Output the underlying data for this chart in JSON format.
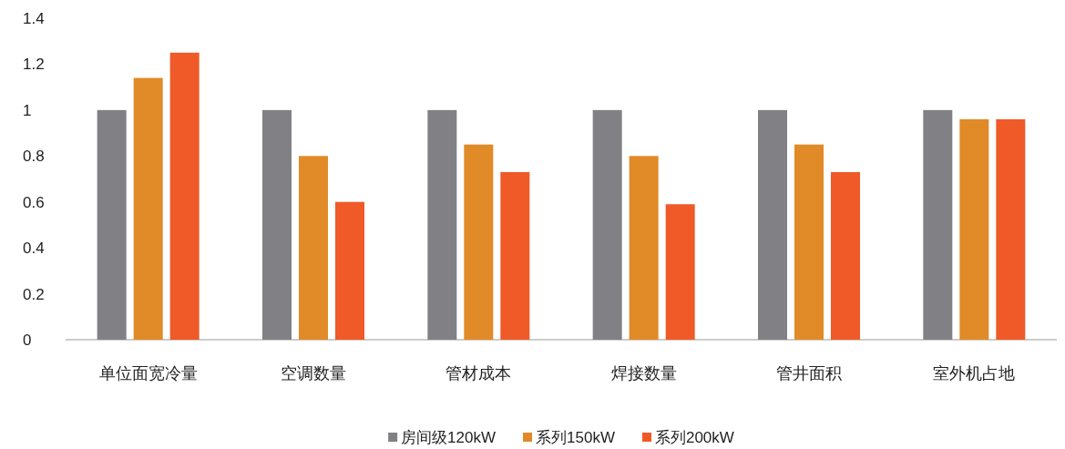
{
  "chart_data": {
    "type": "bar",
    "categories": [
      "单位面宽冷量",
      "空调数量",
      "管材成本",
      "焊接数量",
      "管井面积",
      "室外机占地"
    ],
    "series": [
      {
        "name": "房间级120kW",
        "color": "#818185",
        "values": [
          1,
          1,
          1,
          1,
          1,
          1
        ]
      },
      {
        "name": "系列150kW",
        "color": "#e08a28",
        "values": [
          1.14,
          0.8,
          0.85,
          0.8,
          0.85,
          0.96
        ]
      },
      {
        "name": "系列200kW",
        "color": "#ef5a28",
        "values": [
          1.25,
          0.6,
          0.73,
          0.59,
          0.73,
          0.96
        ]
      }
    ],
    "ylim": [
      0,
      1.4
    ],
    "yticks": [
      0,
      0.2,
      0.4,
      0.6,
      0.8,
      1,
      1.2,
      1.4
    ],
    "grid": false,
    "legend": "bottom"
  }
}
